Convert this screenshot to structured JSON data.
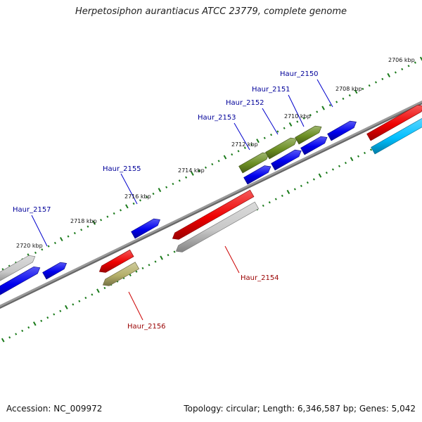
{
  "title": "Herpetosiphon aurantiacus ATCC 23779, complete genome",
  "footer": {
    "accession": "Accession: NC_009972",
    "stats": "Topology: circular; Length: 6,346,587 bp; Genes: 5,042"
  },
  "ruler_labels": [
    "2706 kbp",
    "2708 kbp",
    "2710 kbp",
    "2712 kbp",
    "2714 kbp",
    "2716 kbp",
    "2718 kbp",
    "2720 kbp"
  ],
  "gene_labels": [
    {
      "name": "Haur_2150",
      "color": "#000099"
    },
    {
      "name": "Haur_2151",
      "color": "#000099"
    },
    {
      "name": "Haur_2152",
      "color": "#000099"
    },
    {
      "name": "Haur_2153",
      "color": "#000099"
    },
    {
      "name": "Haur_2155",
      "color": "#000099"
    },
    {
      "name": "Haur_2157",
      "color": "#000099"
    },
    {
      "name": "Haur_2154",
      "color": "#990000"
    },
    {
      "name": "Haur_2156",
      "color": "#990000"
    }
  ],
  "colors": {
    "backbone": "#777777",
    "tick": "#1a7a1a",
    "blue": "#0000ee",
    "red": "#ee0000",
    "olive": "#6b8e23",
    "khaki": "#b5b06a",
    "gray": "#c8c8c8",
    "cyan": "#00bfff"
  }
}
